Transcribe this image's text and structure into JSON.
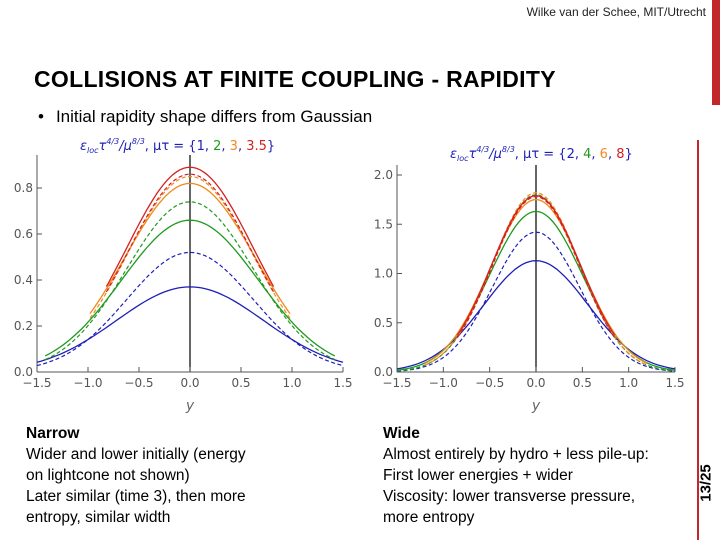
{
  "header": {
    "author": "Wilke van der Schee, MIT/Utrecht"
  },
  "slide": {
    "title": "COLLISIONS AT FINITE COUPLING - RAPIDITY",
    "bullet": "Initial rapidity shape differs from Gaussian",
    "page_number": "13/25"
  },
  "colors": {
    "accent": "#c0282c",
    "series": [
      "#1f1fb8",
      "#1f9a1f",
      "#f08a1c",
      "#d62020"
    ]
  },
  "captions": {
    "left": {
      "heading": "Narrow",
      "lines": [
        "Wider and lower initially (energy",
        "on lightcone not shown)",
        "Later similar (time 3), then more",
        "entropy, similar width"
      ]
    },
    "right": {
      "heading": "Wide",
      "lines": [
        "Almost entirely by hydro + less pile-up:",
        "First lower energies + wider",
        "Viscosity: lower transverse pressure,",
        "more entropy"
      ]
    }
  },
  "chart_data": [
    {
      "type": "line",
      "title_prefix": "ε",
      "title_sub": "loc",
      "title_mid": "τ",
      "title_exp1": "4/3",
      "title_slash": "/μ",
      "title_exp2": "8/3",
      "title_tail": ", μτ = {",
      "title_close": "}",
      "times": [
        "1",
        "2",
        "3",
        "3.5"
      ],
      "xlabel": "y",
      "xlim": [
        -1.5,
        1.5
      ],
      "ylim": [
        0,
        0.9
      ],
      "xticks": [
        "−1.5",
        "−1.0",
        "−0.5",
        "0.0",
        "0.5",
        "1.0",
        "1.5"
      ],
      "yticks": [
        "0.0",
        "0.2",
        "0.4",
        "0.6",
        "0.8"
      ],
      "series": [
        {
          "time": "1",
          "peak": 0.37,
          "width": 0.72,
          "range": [
            -1.5,
            1.5
          ],
          "dashed_peak": 0.52,
          "dashed_width": 0.62,
          "dashed_range": [
            -1.5,
            1.5
          ]
        },
        {
          "time": "2",
          "peak": 0.66,
          "width": 0.67,
          "range": [
            -1.42,
            1.42
          ],
          "dashed_peak": 0.74,
          "dashed_width": 0.62,
          "dashed_range": [
            -1.42,
            1.42
          ]
        },
        {
          "time": "3",
          "peak": 0.82,
          "width": 0.64,
          "range": [
            -0.98,
            0.98
          ],
          "dashed_peak": 0.85,
          "dashed_width": 0.61,
          "dashed_range": [
            -0.98,
            0.98
          ]
        },
        {
          "time": "3.5",
          "peak": 0.89,
          "width": 0.62,
          "range": [
            -0.82,
            0.82
          ],
          "dashed_peak": 0.86,
          "dashed_width": 0.61,
          "dashed_range": [
            -0.82,
            0.82
          ]
        }
      ]
    },
    {
      "type": "line",
      "title_prefix": "ε",
      "title_sub": "loc",
      "title_mid": "τ",
      "title_exp1": "4/3",
      "title_slash": "/μ",
      "title_exp2": "8/3",
      "title_tail": ", μτ = {",
      "title_close": "}",
      "times": [
        "2",
        "4",
        "6",
        "8"
      ],
      "xlabel": "y",
      "xlim": [
        -1.5,
        1.5
      ],
      "ylim": [
        0,
        2.0
      ],
      "xticks": [
        "−1.5",
        "−1.0",
        "−0.5",
        "0.0",
        "0.5",
        "1.0",
        "1.5"
      ],
      "yticks": [
        "0.0",
        "0.5",
        "1.0",
        "1.5",
        "2.0"
      ],
      "series": [
        {
          "time": "2",
          "peak": 1.13,
          "width": 0.56,
          "range": [
            -1.5,
            1.5
          ],
          "dashed_peak": 1.42,
          "dashed_width": 0.47,
          "dashed_range": [
            -1.5,
            1.5
          ]
        },
        {
          "time": "4",
          "peak": 1.63,
          "width": 0.5,
          "range": [
            -1.5,
            1.5
          ],
          "dashed_peak": 1.8,
          "dashed_width": 0.47,
          "dashed_range": [
            -1.5,
            1.5
          ]
        },
        {
          "time": "6",
          "peak": 1.75,
          "width": 0.49,
          "range": [
            -1.2,
            1.2
          ],
          "dashed_peak": 1.82,
          "dashed_width": 0.47,
          "dashed_range": [
            -1.2,
            1.2
          ]
        },
        {
          "time": "8",
          "peak": 1.79,
          "width": 0.48,
          "range": [
            -0.85,
            0.85
          ],
          "dashed_peak": 1.78,
          "dashed_width": 0.47,
          "dashed_range": [
            -0.85,
            0.85
          ]
        }
      ]
    }
  ]
}
